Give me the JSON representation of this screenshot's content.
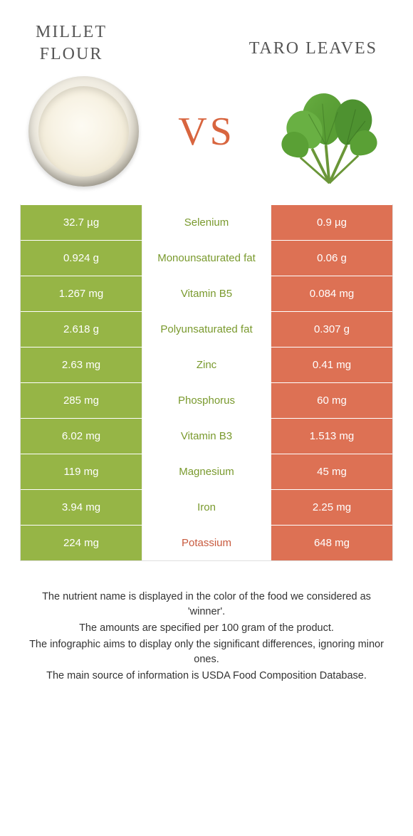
{
  "colors": {
    "left": "#96b546",
    "right": "#dd7154",
    "vs": "#d8653f",
    "mid_left_text": "#7a9a2e",
    "mid_right_text": "#c85a3e"
  },
  "titles": {
    "left_line1": "Millet",
    "left_line2": "flour",
    "right": "Taro leaves",
    "vs": "VS"
  },
  "rows": [
    {
      "left": "32.7 µg",
      "mid": "Selenium",
      "right": "0.9 µg",
      "winner": "left"
    },
    {
      "left": "0.924 g",
      "mid": "Monounsaturated fat",
      "right": "0.06 g",
      "winner": "left"
    },
    {
      "left": "1.267 mg",
      "mid": "Vitamin B5",
      "right": "0.084 mg",
      "winner": "left"
    },
    {
      "left": "2.618 g",
      "mid": "Polyunsaturated fat",
      "right": "0.307 g",
      "winner": "left"
    },
    {
      "left": "2.63 mg",
      "mid": "Zinc",
      "right": "0.41 mg",
      "winner": "left"
    },
    {
      "left": "285 mg",
      "mid": "Phosphorus",
      "right": "60 mg",
      "winner": "left"
    },
    {
      "left": "6.02 mg",
      "mid": "Vitamin B3",
      "right": "1.513 mg",
      "winner": "left"
    },
    {
      "left": "119 mg",
      "mid": "Magnesium",
      "right": "45 mg",
      "winner": "left"
    },
    {
      "left": "3.94 mg",
      "mid": "Iron",
      "right": "2.25 mg",
      "winner": "left"
    },
    {
      "left": "224 mg",
      "mid": "Potassium",
      "right": "648 mg",
      "winner": "right"
    }
  ],
  "notes": [
    "The nutrient name is displayed in the color of the food we considered as 'winner'.",
    "The amounts are specified per 100 gram of the product.",
    "The infographic aims to display only the significant differences, ignoring minor ones.",
    "The main source of information is USDA Food Composition Database."
  ]
}
